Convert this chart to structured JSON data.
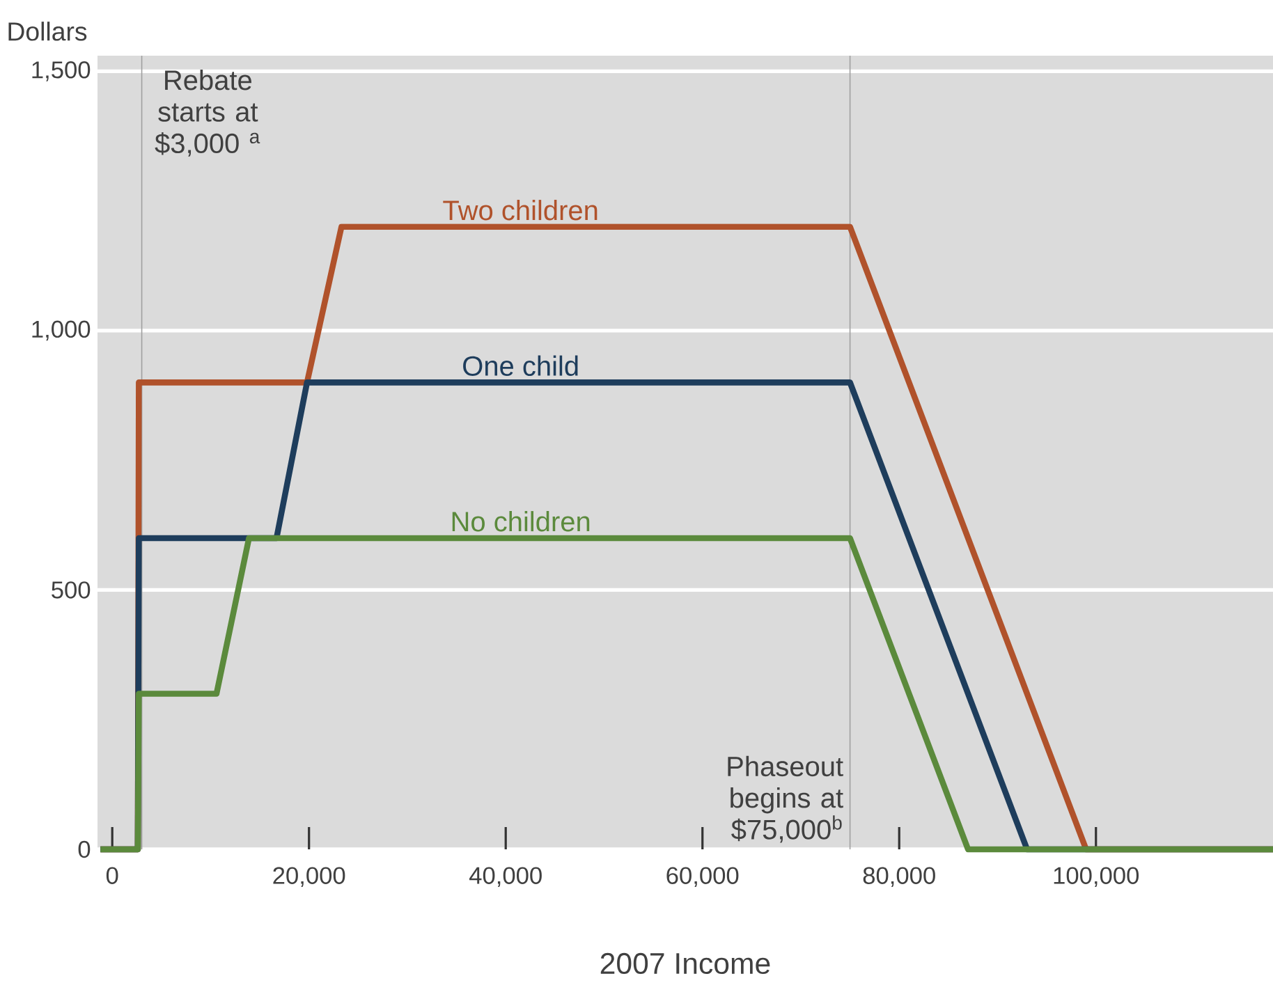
{
  "chart_data": {
    "type": "line",
    "xlabel": "2007 Income",
    "ylabel": "Dollars",
    "x": [
      -1200,
      2600,
      2700,
      10600,
      13900,
      16700,
      19800,
      23300,
      75000,
      87000,
      93000,
      99000,
      118000
    ],
    "series": [
      {
        "name": "Two children",
        "color": "#b0522b",
        "values": [
          0,
          0,
          900,
          900,
          900,
          900,
          900,
          1200,
          1200,
          600,
          300,
          0,
          0
        ]
      },
      {
        "name": "One child",
        "color": "#1e3d5c",
        "values": [
          0,
          0,
          600,
          600,
          600,
          600,
          900,
          900,
          900,
          300,
          0,
          0,
          0
        ]
      },
      {
        "name": "No children",
        "color": "#5b8a3c",
        "values": [
          0,
          0,
          300,
          300,
          600,
          600,
          600,
          600,
          600,
          0,
          0,
          0,
          0
        ]
      }
    ],
    "xlim": [
      -1500,
      118000
    ],
    "ylim": [
      0,
      1530
    ],
    "xticks": [
      0,
      {
        "value": 20000,
        "label": "20,000"
      },
      {
        "value": 40000,
        "label": "40,000"
      },
      {
        "value": 60000,
        "label": "60,000"
      },
      {
        "value": 80000,
        "label": "80,000"
      },
      {
        "value": 100000,
        "label": "100,000"
      }
    ],
    "yticks": [
      0,
      {
        "value": 500,
        "label": "500"
      },
      {
        "value": 1000,
        "label": "1,000"
      },
      {
        "value": 1500,
        "label": "1,500"
      }
    ],
    "grid": "y",
    "marker": "none",
    "line_style": "solid",
    "ref_lines": [
      {
        "axis": "x",
        "value": 3000,
        "label": "Rebate starts at $3,000 $^{a}$",
        "color": "#a0a0a0"
      },
      {
        "axis": "x",
        "value": 75000,
        "label": "Phaseout begins at $75,000$^{b}$",
        "color": "#a0a0a0"
      }
    ]
  }
}
